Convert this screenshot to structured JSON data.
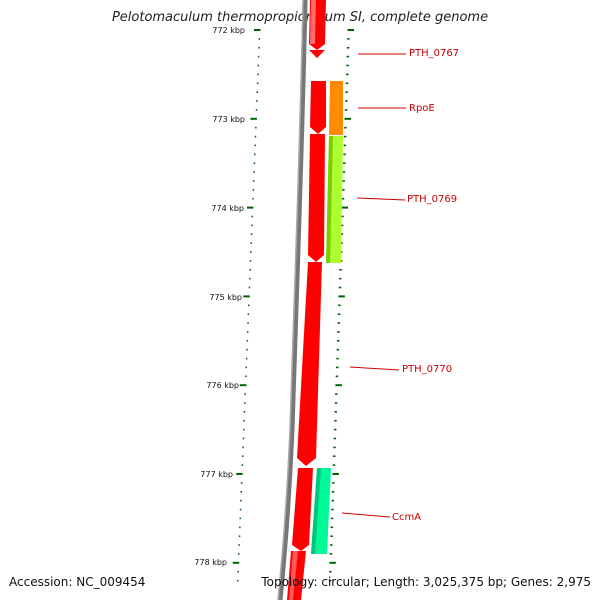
{
  "title": "Pelotomaculum thermopropionicum SI, complete genome",
  "footer": {
    "accession": "Accession: NC_009454",
    "topology": "Topology: circular; Length: 3,025,375 bp; Genes: 2,975"
  },
  "ruler": {
    "unit": "kbp",
    "ticks": [
      {
        "label": "772 kbp"
      },
      {
        "label": "773 kbp"
      },
      {
        "label": "774 kbp"
      },
      {
        "label": "775 kbp"
      },
      {
        "label": "776 kbp"
      },
      {
        "label": "777 kbp"
      },
      {
        "label": "778 kbp"
      }
    ]
  },
  "genes": [
    {
      "name": "PTH_0767",
      "color": "#ff0000"
    },
    {
      "name": "RpoE",
      "color": "#ff8c00"
    },
    {
      "name": "PTH_0769",
      "color": "#adff2f"
    },
    {
      "name": "PTH_0770",
      "color": "#ff0000"
    },
    {
      "name": "CcmA",
      "color": "#00fa9a"
    }
  ],
  "colors": {
    "ruler": "#006400",
    "backbone": "#808080",
    "label": "#cc0000"
  }
}
